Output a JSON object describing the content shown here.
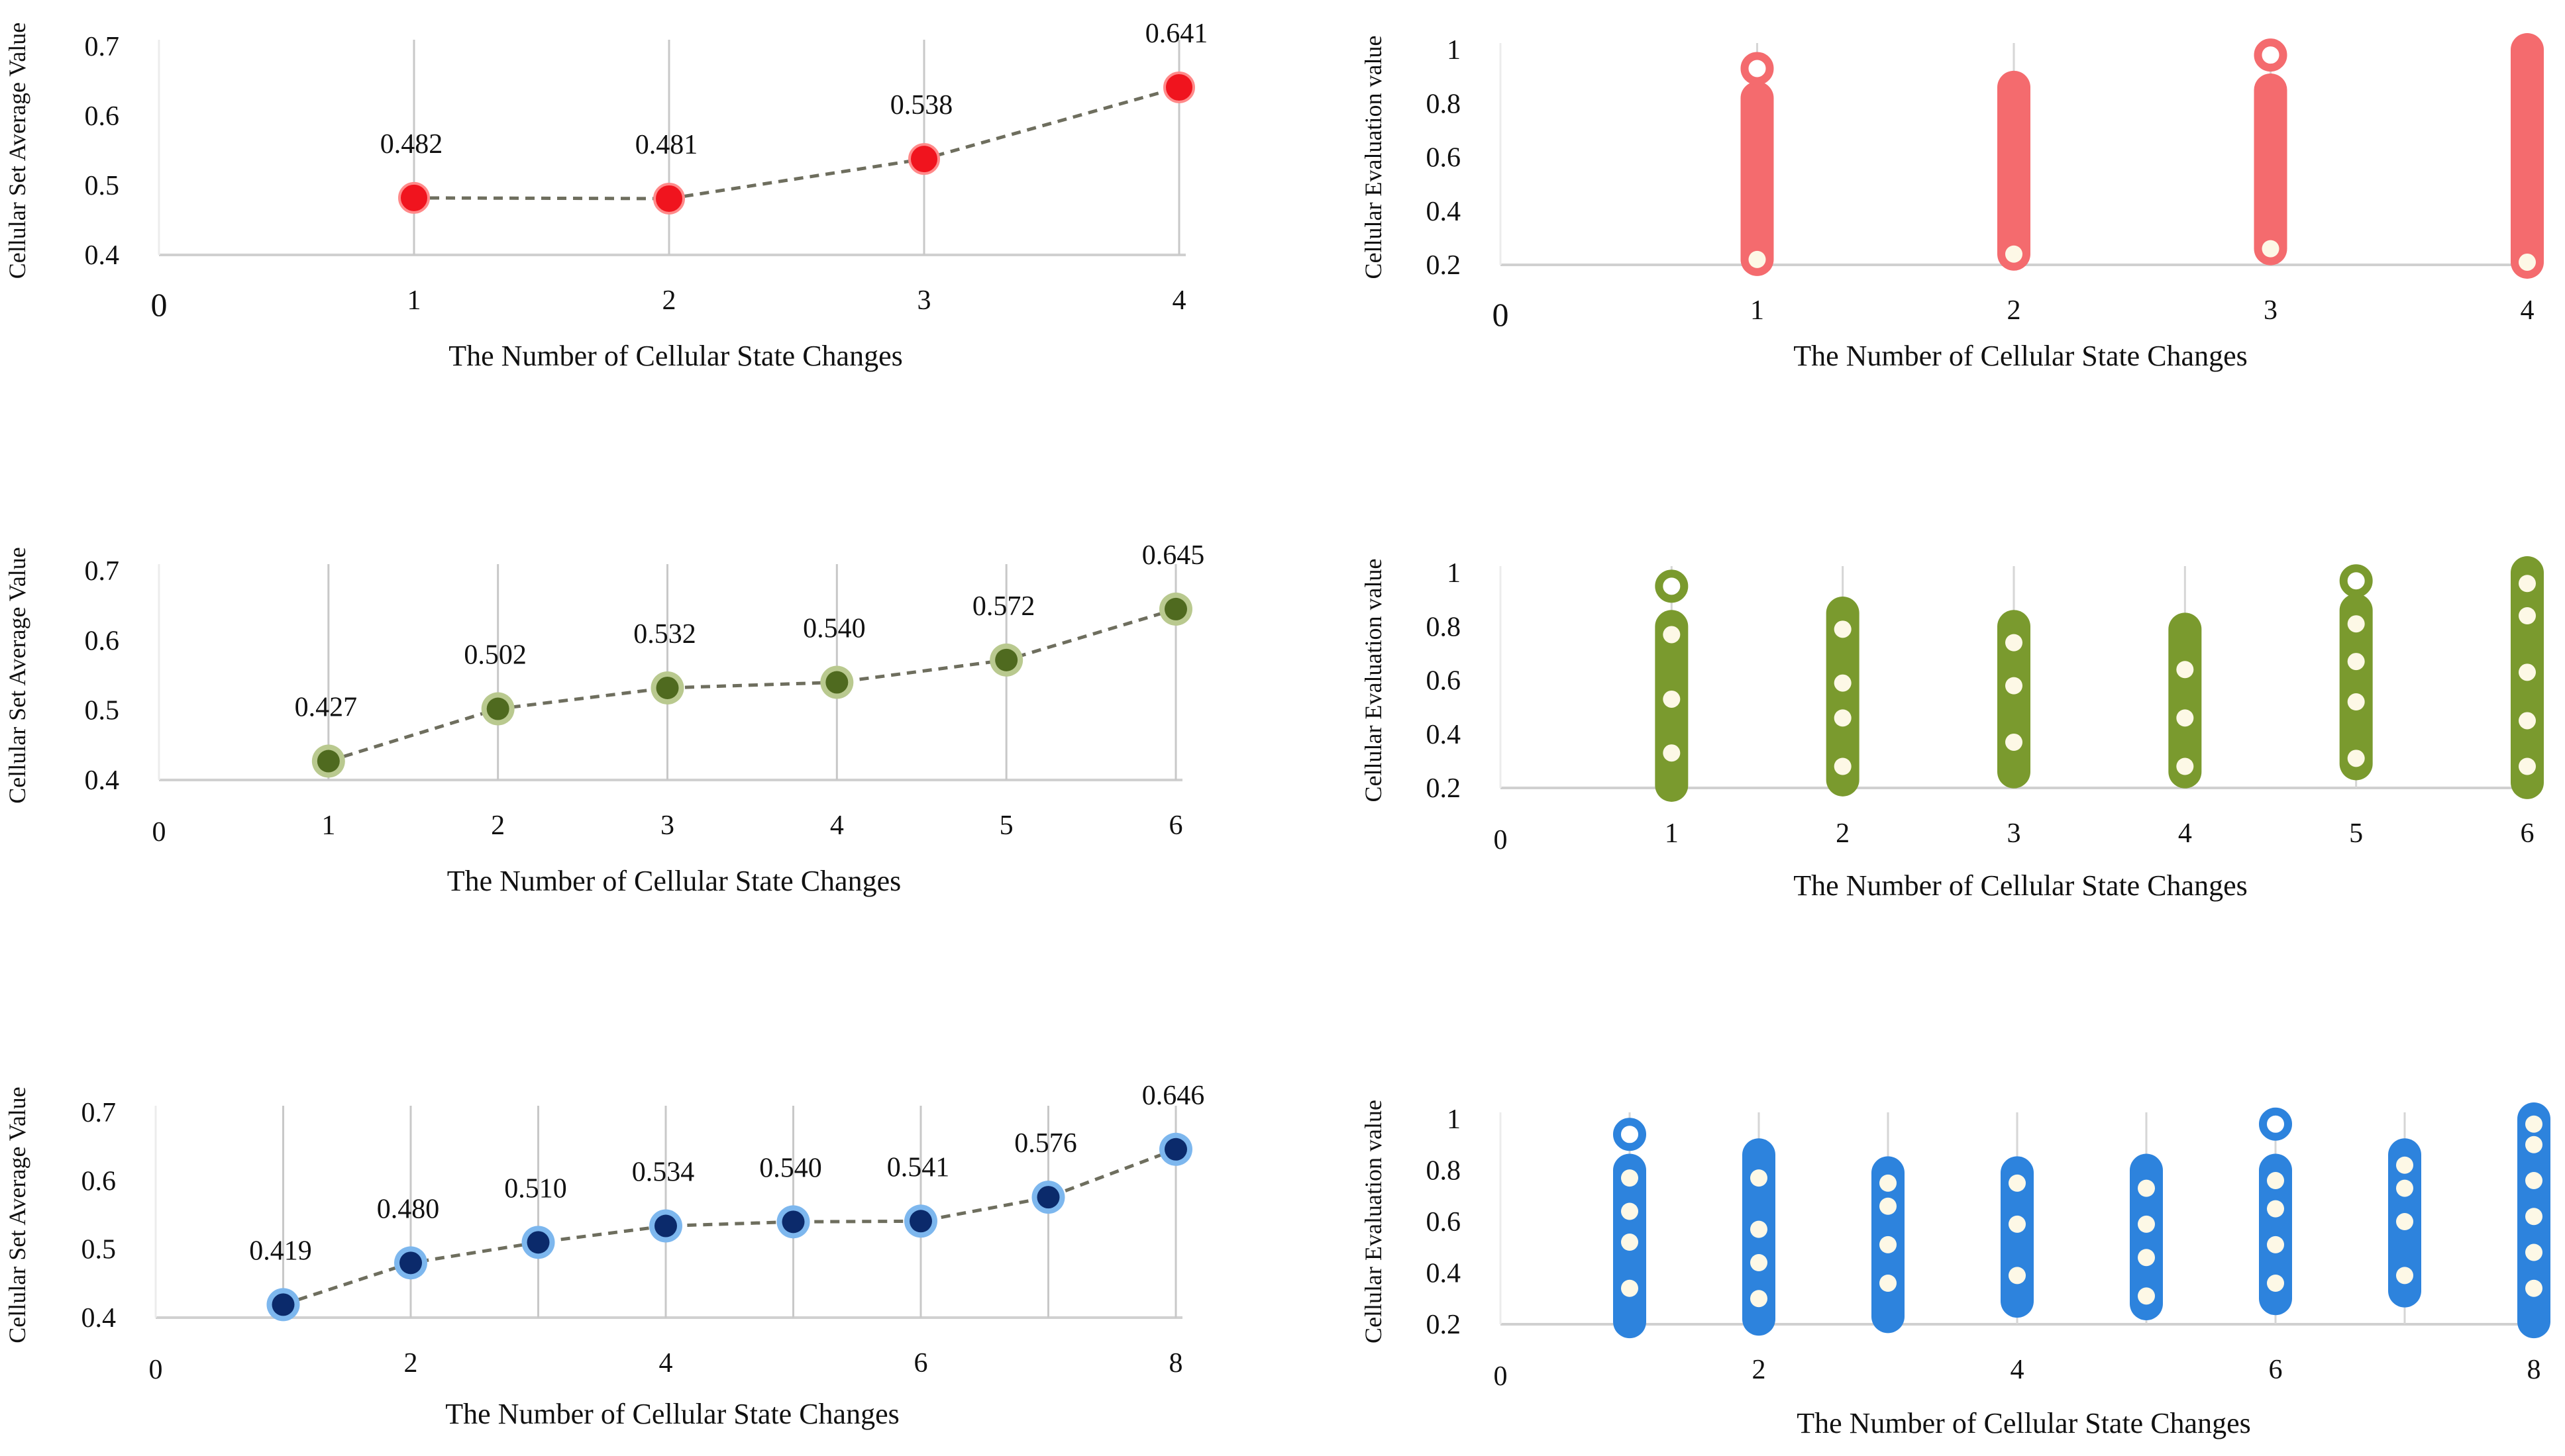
{
  "colors": {
    "red": "#f0141e",
    "red_light": "#f46b6e",
    "green": "#4f6a1f",
    "green_light": "#7a9a2e",
    "blue": "#0b2a6b",
    "blue_light": "#2d83dd",
    "connector": "#6e6e5e"
  },
  "chart_data": [
    {
      "id": "avg-4",
      "type": "line",
      "marker_color": "red",
      "x": [
        1,
        2,
        3,
        4
      ],
      "y": [
        0.482,
        0.481,
        0.538,
        0.641
      ],
      "labels": [
        "0.482",
        "0.481",
        "0.538",
        "0.641"
      ],
      "xlabel": "The Number of Cellular State Changes",
      "ylabel": "Cellular Set Average Value",
      "xlim": [
        0,
        4
      ],
      "ylim": [
        0.4,
        0.7
      ],
      "xticks": [
        "0",
        "1",
        "2",
        "3",
        "4"
      ],
      "yticks": [
        "0.4",
        "0.5",
        "0.6",
        "0.7"
      ]
    },
    {
      "id": "dist-4",
      "type": "scatter",
      "marker_color": "red_light",
      "x": [
        1,
        2,
        3,
        4
      ],
      "range_low": [
        0.22,
        0.24,
        0.26,
        0.21
      ],
      "range_high": [
        0.82,
        0.86,
        0.85,
        1.0
      ],
      "outliers": [
        [
          1,
          0.93
        ],
        [
          3,
          0.98
        ]
      ],
      "inner_points": [
        [
          1,
          0.22
        ],
        [
          2,
          0.24
        ],
        [
          3,
          0.26
        ],
        [
          4,
          0.21
        ]
      ],
      "xlabel": "The Number of Cellular State Changes",
      "ylabel": "Cellular Evaluation value",
      "xlim": [
        0,
        4
      ],
      "ylim": [
        0.2,
        1.0
      ],
      "xticks": [
        "0",
        "1",
        "2",
        "3",
        "4"
      ],
      "yticks": [
        "0.2",
        "0.4",
        "0.6",
        "0.8",
        "1"
      ]
    },
    {
      "id": "avg-6",
      "type": "line",
      "marker_color": "green",
      "x": [
        1,
        2,
        3,
        4,
        5,
        6
      ],
      "y": [
        0.427,
        0.502,
        0.532,
        0.54,
        0.572,
        0.645
      ],
      "labels": [
        "0.427",
        "0.502",
        "0.532",
        "0.540",
        "0.572",
        "0.645"
      ],
      "xlabel": "The Number of Cellular State Changes",
      "ylabel": "Cellular Set Average Value",
      "xlim": [
        0,
        6
      ],
      "ylim": [
        0.4,
        0.7
      ],
      "xticks": [
        "0",
        "1",
        "2",
        "3",
        "4",
        "5",
        "6"
      ],
      "yticks": [
        "0.4",
        "0.5",
        "0.6",
        "0.7"
      ]
    },
    {
      "id": "dist-6",
      "type": "scatter",
      "marker_color": "green_light",
      "x": [
        1,
        2,
        3,
        4,
        5,
        6
      ],
      "range_low": [
        0.21,
        0.23,
        0.26,
        0.26,
        0.29,
        0.22
      ],
      "range_high": [
        0.8,
        0.85,
        0.8,
        0.79,
        0.86,
        1.0
      ],
      "outliers": [
        [
          1,
          0.95
        ],
        [
          5,
          0.97
        ]
      ],
      "inner_points": [
        [
          1,
          0.33
        ],
        [
          1,
          0.53
        ],
        [
          1,
          0.77
        ],
        [
          2,
          0.28
        ],
        [
          2,
          0.46
        ],
        [
          2,
          0.59
        ],
        [
          2,
          0.79
        ],
        [
          3,
          0.37
        ],
        [
          3,
          0.58
        ],
        [
          3,
          0.74
        ],
        [
          4,
          0.28
        ],
        [
          4,
          0.46
        ],
        [
          4,
          0.64
        ],
        [
          5,
          0.31
        ],
        [
          5,
          0.52
        ],
        [
          5,
          0.67
        ],
        [
          5,
          0.81
        ],
        [
          6,
          0.28
        ],
        [
          6,
          0.45
        ],
        [
          6,
          0.63
        ],
        [
          6,
          0.84
        ],
        [
          6,
          0.96
        ]
      ],
      "xlabel": "The Number of Cellular State Changes",
      "ylabel": "Cellular Evaluation value",
      "xlim": [
        0,
        6
      ],
      "ylim": [
        0.2,
        1.0
      ],
      "xticks": [
        "0",
        "1",
        "2",
        "3",
        "4",
        "5",
        "6"
      ],
      "yticks": [
        "0.2",
        "0.4",
        "0.6",
        "0.8",
        "1"
      ]
    },
    {
      "id": "avg-8",
      "type": "line",
      "marker_color": "blue",
      "x": [
        1,
        2,
        3,
        4,
        5,
        6,
        7,
        8
      ],
      "y": [
        0.419,
        0.48,
        0.51,
        0.534,
        0.54,
        0.541,
        0.576,
        0.646
      ],
      "labels": [
        "0.419",
        "0.480",
        "0.510",
        "0.534",
        "0.540",
        "0.541",
        "0.576",
        "0.646"
      ],
      "xlabel": "The Number of Cellular State Changes",
      "ylabel": "Cellular Set Average Value",
      "xlim": [
        0,
        8
      ],
      "ylim": [
        0.4,
        0.7
      ],
      "xticks": [
        "0",
        "2",
        "4",
        "6",
        "8"
      ],
      "xtick_values": [
        0,
        2,
        4,
        6,
        8
      ],
      "yticks": [
        "0.4",
        "0.5",
        "0.6",
        "0.7"
      ]
    },
    {
      "id": "dist-8",
      "type": "scatter",
      "marker_color": "blue_light",
      "x": [
        1,
        2,
        3,
        4,
        5,
        6,
        7,
        8
      ],
      "range_low": [
        0.21,
        0.22,
        0.23,
        0.29,
        0.28,
        0.3,
        0.33,
        0.21
      ],
      "range_high": [
        0.8,
        0.86,
        0.79,
        0.79,
        0.8,
        0.8,
        0.86,
        1.0
      ],
      "outliers": [
        [
          1,
          0.94
        ],
        [
          6,
          0.98
        ]
      ],
      "inner_points": [
        [
          1,
          0.34
        ],
        [
          1,
          0.52
        ],
        [
          1,
          0.64
        ],
        [
          1,
          0.77
        ],
        [
          2,
          0.3
        ],
        [
          2,
          0.44
        ],
        [
          2,
          0.57
        ],
        [
          2,
          0.77
        ],
        [
          3,
          0.36
        ],
        [
          3,
          0.51
        ],
        [
          3,
          0.66
        ],
        [
          3,
          0.75
        ],
        [
          4,
          0.39
        ],
        [
          4,
          0.59
        ],
        [
          4,
          0.75
        ],
        [
          5,
          0.31
        ],
        [
          5,
          0.46
        ],
        [
          5,
          0.59
        ],
        [
          5,
          0.73
        ],
        [
          6,
          0.36
        ],
        [
          6,
          0.51
        ],
        [
          6,
          0.65
        ],
        [
          6,
          0.76
        ],
        [
          7,
          0.39
        ],
        [
          7,
          0.6
        ],
        [
          7,
          0.73
        ],
        [
          7,
          0.82
        ],
        [
          8,
          0.34
        ],
        [
          8,
          0.48
        ],
        [
          8,
          0.62
        ],
        [
          8,
          0.76
        ],
        [
          8,
          0.9
        ],
        [
          8,
          0.98
        ]
      ],
      "xlabel": "The Number of Cellular State Changes",
      "ylabel": "Cellular Evaluation value",
      "xlim": [
        0,
        8
      ],
      "ylim": [
        0.2,
        1.0
      ],
      "xticks": [
        "0",
        "2",
        "4",
        "6",
        "8"
      ],
      "xtick_values": [
        0,
        2,
        4,
        6,
        8
      ],
      "yticks": [
        "0.2",
        "0.4",
        "0.6",
        "0.8",
        "1"
      ]
    }
  ]
}
